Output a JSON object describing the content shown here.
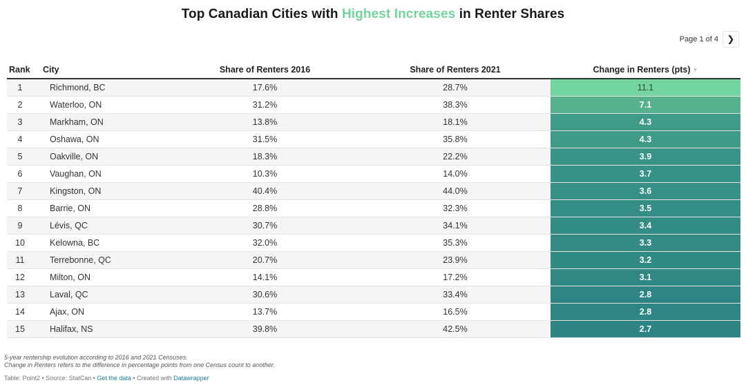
{
  "title": {
    "part1": "Top Canadian Cities with ",
    "highlight": "Highest Increases",
    "part2": " in Renter Shares",
    "highlight_color": "#74d4a0"
  },
  "pager": {
    "text": "Page 1 of 4",
    "next_icon": "chevron-right"
  },
  "chart_data": {
    "type": "table",
    "columns": [
      "Rank",
      "City",
      "Share of Renters 2016",
      "Share of Renters 2021",
      "Change in Renters (pts)"
    ],
    "sort_icon": "sort-desc-triangle",
    "rows": [
      {
        "rank": "1",
        "city": "Richmond, BC",
        "s2016": "17.6%",
        "s2021": "28.7%",
        "change": "11.1",
        "color": "#74d4a0",
        "text_color": "#1e4d39"
      },
      {
        "rank": "2",
        "city": "Waterloo, ON",
        "s2016": "31.2%",
        "s2021": "38.3%",
        "change": "7.1",
        "color": "#57b18e",
        "text_color": "#ffffff"
      },
      {
        "rank": "3",
        "city": "Markham, ON",
        "s2016": "13.8%",
        "s2021": "18.1%",
        "change": "4.3",
        "color": "#3f9b88",
        "text_color": "#ffffff"
      },
      {
        "rank": "4",
        "city": "Oshawa, ON",
        "s2016": "31.5%",
        "s2021": "35.8%",
        "change": "4.3",
        "color": "#3f9b88",
        "text_color": "#ffffff"
      },
      {
        "rank": "5",
        "city": "Oakville, ON",
        "s2016": "18.3%",
        "s2021": "22.2%",
        "change": "3.9",
        "color": "#399487",
        "text_color": "#ffffff"
      },
      {
        "rank": "6",
        "city": "Vaughan, ON",
        "s2016": "10.3%",
        "s2021": "14.0%",
        "change": "3.7",
        "color": "#379186",
        "text_color": "#ffffff"
      },
      {
        "rank": "7",
        "city": "Kingston, ON",
        "s2016": "40.4%",
        "s2021": "44.0%",
        "change": "3.6",
        "color": "#369085",
        "text_color": "#ffffff"
      },
      {
        "rank": "8",
        "city": "Barrie, ON",
        "s2016": "28.8%",
        "s2021": "32.3%",
        "change": "3.5",
        "color": "#358e85",
        "text_color": "#ffffff"
      },
      {
        "rank": "9",
        "city": "Lévis, QC",
        "s2016": "30.7%",
        "s2021": "34.1%",
        "change": "3.4",
        "color": "#348d85",
        "text_color": "#ffffff"
      },
      {
        "rank": "10",
        "city": "Kelowna, BC",
        "s2016": "32.0%",
        "s2021": "35.3%",
        "change": "3.3",
        "color": "#338b84",
        "text_color": "#ffffff"
      },
      {
        "rank": "11",
        "city": "Terrebonne, QC",
        "s2016": "20.7%",
        "s2021": "23.9%",
        "change": "3.2",
        "color": "#328a84",
        "text_color": "#ffffff"
      },
      {
        "rank": "12",
        "city": "Milton, ON",
        "s2016": "14.1%",
        "s2021": "17.2%",
        "change": "3.1",
        "color": "#318883",
        "text_color": "#ffffff"
      },
      {
        "rank": "13",
        "city": "Laval, QC",
        "s2016": "30.6%",
        "s2021": "33.4%",
        "change": "2.8",
        "color": "#2f8583",
        "text_color": "#ffffff"
      },
      {
        "rank": "14",
        "city": "Ajax, ON",
        "s2016": "13.7%",
        "s2021": "16.5%",
        "change": "2.8",
        "color": "#2f8583",
        "text_color": "#ffffff"
      },
      {
        "rank": "15",
        "city": "Halifax, NS",
        "s2016": "39.8%",
        "s2021": "42.5%",
        "change": "2.7",
        "color": "#2e8482",
        "text_color": "#ffffff"
      }
    ]
  },
  "notes": {
    "line1": "5-year rentership evolution according to 2016 and 2021 Censuses.",
    "line2": "Change in Renters refers to the difference in percentage points from one Census count to another."
  },
  "source": {
    "prefix": "Table: Point2 • Source: StatCan • ",
    "data_link": "Get the data",
    "middle": " • Created with ",
    "dw_link": "Datawrapper"
  }
}
